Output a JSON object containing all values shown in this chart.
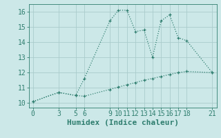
{
  "line1_x": [
    0,
    3,
    5,
    6,
    9,
    10,
    11,
    12,
    13,
    14,
    15,
    16,
    17,
    18,
    21
  ],
  "line1_y": [
    10.1,
    10.7,
    10.5,
    11.6,
    15.4,
    16.1,
    16.1,
    14.7,
    14.8,
    13.0,
    15.4,
    15.8,
    14.3,
    14.1,
    12.0
  ],
  "line2_x": [
    0,
    3,
    5,
    6,
    9,
    10,
    11,
    12,
    13,
    14,
    15,
    16,
    17,
    18,
    21
  ],
  "line2_y": [
    10.1,
    10.7,
    10.5,
    10.45,
    10.9,
    11.05,
    11.2,
    11.35,
    11.5,
    11.62,
    11.75,
    11.88,
    12.0,
    12.08,
    12.0
  ],
  "line_color": "#2e7d6e",
  "bg_color": "#cce8e8",
  "grid_color": "#aacccc",
  "xlabel": "Humidex (Indice chaleur)",
  "xticks": [
    0,
    3,
    5,
    6,
    9,
    10,
    11,
    12,
    13,
    14,
    15,
    16,
    17,
    18,
    21
  ],
  "yticks": [
    10,
    11,
    12,
    13,
    14,
    15,
    16
  ],
  "xlim": [
    -0.5,
    21.5
  ],
  "ylim": [
    9.7,
    16.5
  ],
  "markersize": 3.5,
  "linewidth": 0.9,
  "xlabel_fontsize": 8,
  "tick_fontsize": 7
}
